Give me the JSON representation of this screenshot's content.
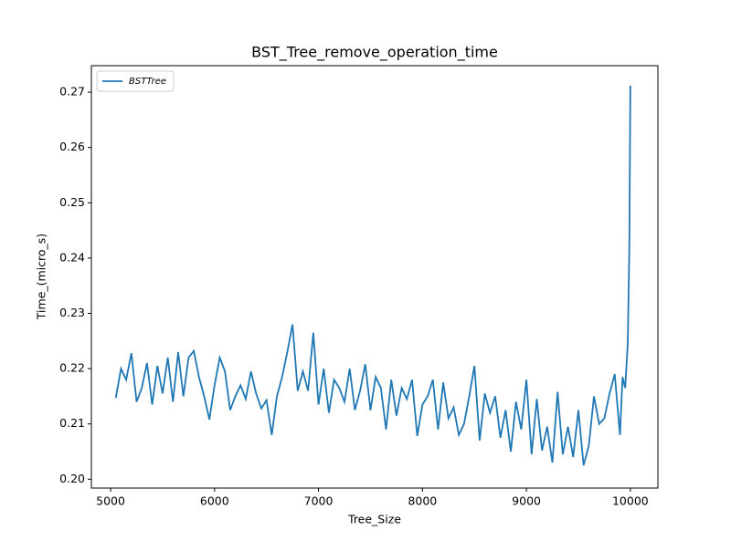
{
  "chart_data": {
    "type": "line",
    "title": "BST_Tree_remove_operation_time",
    "x_label": "Tree_Size",
    "y_label": "Time_(micro_s)",
    "x": [
      5050,
      5100,
      5150,
      5200,
      5250,
      5300,
      5350,
      5400,
      5450,
      5500,
      5550,
      5600,
      5650,
      5700,
      5750,
      5800,
      5850,
      5900,
      5950,
      6000,
      6050,
      6100,
      6150,
      6200,
      6250,
      6300,
      6350,
      6400,
      6450,
      6500,
      6550,
      6600,
      6650,
      6700,
      6750,
      6800,
      6850,
      6900,
      6950,
      7000,
      7050,
      7100,
      7150,
      7200,
      7250,
      7300,
      7350,
      7400,
      7450,
      7500,
      7550,
      7600,
      7650,
      7700,
      7750,
      7800,
      7850,
      7900,
      7950,
      8000,
      8050,
      8100,
      8150,
      8200,
      8250,
      8300,
      8350,
      8400,
      8450,
      8500,
      8550,
      8600,
      8650,
      8700,
      8750,
      8800,
      8850,
      8900,
      8950,
      9000,
      9050,
      9100,
      9150,
      9200,
      9250,
      9300,
      9350,
      9400,
      9450,
      9500,
      9550,
      9600,
      9650,
      9700,
      9750,
      9800,
      9850,
      9900,
      9925,
      9950,
      9975,
      9990,
      10000
    ],
    "series": [
      {
        "name": "BSTTree",
        "color": "#1f77b4",
        "values": [
          0.2147,
          0.22,
          0.218,
          0.2228,
          0.214,
          0.2165,
          0.221,
          0.2135,
          0.2205,
          0.2155,
          0.222,
          0.214,
          0.223,
          0.215,
          0.222,
          0.2232,
          0.2185,
          0.215,
          0.2108,
          0.217,
          0.222,
          0.2195,
          0.2125,
          0.215,
          0.217,
          0.2145,
          0.2195,
          0.2155,
          0.2128,
          0.2143,
          0.208,
          0.215,
          0.2185,
          0.223,
          0.228,
          0.216,
          0.2195,
          0.216,
          0.2265,
          0.2135,
          0.22,
          0.212,
          0.218,
          0.2165,
          0.214,
          0.22,
          0.2125,
          0.216,
          0.2208,
          0.2125,
          0.2185,
          0.2165,
          0.209,
          0.218,
          0.2115,
          0.2165,
          0.2145,
          0.218,
          0.2078,
          0.2135,
          0.215,
          0.218,
          0.209,
          0.2175,
          0.211,
          0.213,
          0.208,
          0.21,
          0.215,
          0.2205,
          0.207,
          0.2155,
          0.212,
          0.215,
          0.2075,
          0.2125,
          0.205,
          0.214,
          0.209,
          0.218,
          0.2045,
          0.2145,
          0.2052,
          0.2095,
          0.203,
          0.2158,
          0.2045,
          0.2095,
          0.204,
          0.2125,
          0.2025,
          0.206,
          0.215,
          0.21,
          0.211,
          0.2155,
          0.219,
          0.208,
          0.2185,
          0.2165,
          0.2245,
          0.2415,
          0.2712
        ]
      }
    ],
    "xlim": [
      4815,
      10265
    ],
    "xticks": [
      5000,
      6000,
      7000,
      8000,
      9000,
      10000
    ],
    "ylim": [
      0.1984,
      0.2748
    ],
    "yticks": [
      {
        "value": 0.2,
        "label": "0.20"
      },
      0.21,
      0.22,
      0.23,
      0.24,
      0.25,
      0.26,
      0.27
    ],
    "legend": "upper left"
  }
}
